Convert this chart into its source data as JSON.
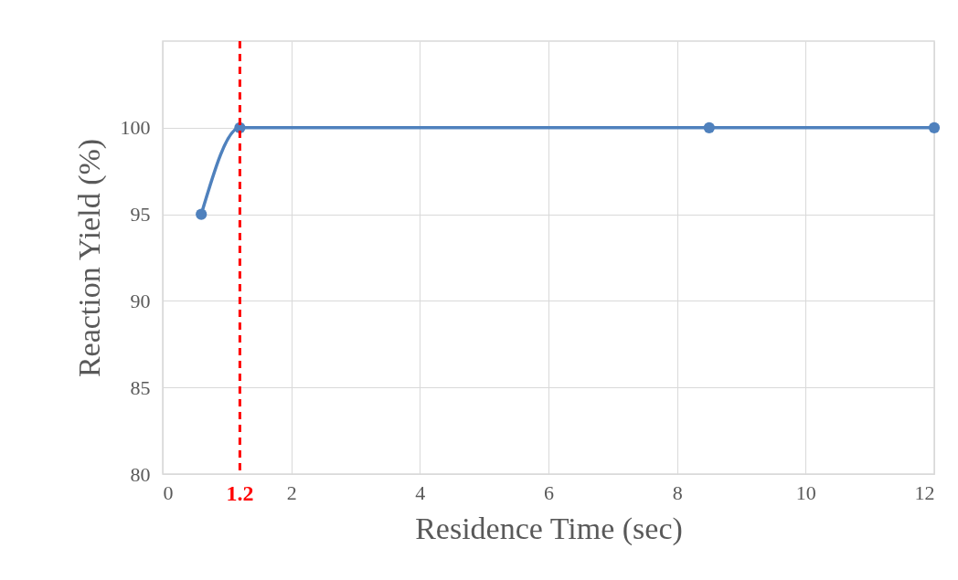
{
  "chart_data": {
    "type": "line",
    "xlabel": "Residence Time (sec)",
    "ylabel": "Reaction Yield (%)",
    "x": [
      0.6,
      1.2,
      8.5,
      12
    ],
    "series": [
      {
        "color": "#4f81bd",
        "values": [
          95,
          100,
          100,
          100
        ]
      }
    ],
    "xlim": [
      0,
      12
    ],
    "xticks": [
      0,
      2,
      4,
      6,
      8,
      10,
      12
    ],
    "ylim": [
      80,
      105
    ],
    "yticks": [
      80,
      85,
      90,
      95,
      100
    ],
    "grid": true,
    "marker": "circle",
    "line_style": "solid",
    "ref_lines": [
      {
        "axis": "x",
        "value": 1.2,
        "label": "1.2",
        "color": "#ff0000",
        "line_style": "dashed"
      }
    ]
  }
}
